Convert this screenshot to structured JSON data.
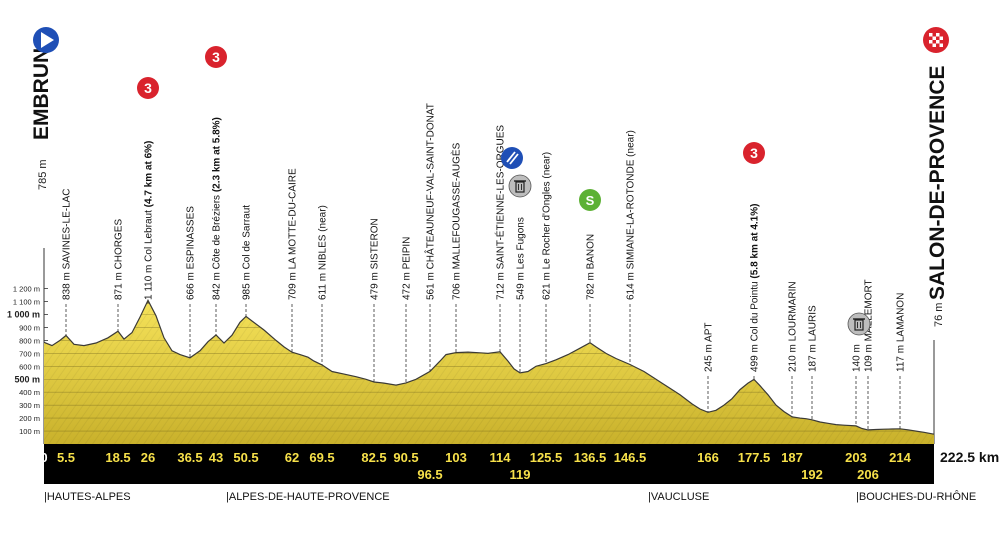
{
  "chart_data": {
    "type": "area",
    "title_start": "EMBRUN",
    "title_end": "SALON-DE-PROVENCE",
    "start_altitude_label": "785 m",
    "end_altitude_label": "76 m",
    "distance_total_label": "222.5 km",
    "x_unit": "km",
    "y_unit": "m",
    "xlim": [
      0,
      222.5
    ],
    "ylim": [
      0,
      1200
    ],
    "y_ticks": [
      {
        "value": 1200,
        "label": "1 200 m",
        "bold": false
      },
      {
        "value": 1100,
        "label": "1 100 m",
        "bold": false
      },
      {
        "value": 1000,
        "label": "1 000 m",
        "bold": true
      },
      {
        "value": 900,
        "label": "900 m",
        "bold": false
      },
      {
        "value": 800,
        "label": "800 m",
        "bold": false
      },
      {
        "value": 700,
        "label": "700 m",
        "bold": false
      },
      {
        "value": 600,
        "label": "600 m",
        "bold": false
      },
      {
        "value": 500,
        "label": "500 m",
        "bold": true
      },
      {
        "value": 400,
        "label": "400 m",
        "bold": false
      },
      {
        "value": 300,
        "label": "300 m",
        "bold": false
      },
      {
        "value": 200,
        "label": "200 m",
        "bold": false
      },
      {
        "value": 100,
        "label": "100 m",
        "bold": false
      }
    ],
    "km_ticks": [
      {
        "km": 0,
        "label": "0"
      },
      {
        "km": 5.5,
        "label": "5.5"
      },
      {
        "km": 18.5,
        "label": "18.5"
      },
      {
        "km": 26,
        "label": "26"
      },
      {
        "km": 36.5,
        "label": "36.5"
      },
      {
        "km": 43,
        "label": "43"
      },
      {
        "km": 50.5,
        "label": "50.5"
      },
      {
        "km": 62,
        "label": "62"
      },
      {
        "km": 69.5,
        "label": "69.5"
      },
      {
        "km": 82.5,
        "label": "82.5"
      },
      {
        "km": 90.5,
        "label": "90.5"
      },
      {
        "km": 96.5,
        "label": "96.5",
        "row": 2
      },
      {
        "km": 103,
        "label": "103"
      },
      {
        "km": 114,
        "label": "114"
      },
      {
        "km": 119,
        "label": "119",
        "row": 2
      },
      {
        "km": 125.5,
        "label": "125.5"
      },
      {
        "km": 136.5,
        "label": "136.5"
      },
      {
        "km": 146.5,
        "label": "146.5"
      },
      {
        "km": 166,
        "label": "166"
      },
      {
        "km": 177.5,
        "label": "177.5"
      },
      {
        "km": 187,
        "label": "187"
      },
      {
        "km": 192,
        "label": "192",
        "row": 2
      },
      {
        "km": 203,
        "label": "203"
      },
      {
        "km": 206,
        "label": "206",
        "row": 2
      },
      {
        "km": 214,
        "label": "214"
      }
    ],
    "profile": [
      [
        0,
        785
      ],
      [
        2,
        760
      ],
      [
        4,
        800
      ],
      [
        5.5,
        838
      ],
      [
        7.5,
        770
      ],
      [
        10,
        760
      ],
      [
        13,
        780
      ],
      [
        16,
        820
      ],
      [
        18.5,
        871
      ],
      [
        20,
        810
      ],
      [
        22,
        860
      ],
      [
        24,
        980
      ],
      [
        26,
        1110
      ],
      [
        28,
        990
      ],
      [
        30,
        820
      ],
      [
        32,
        720
      ],
      [
        34,
        690
      ],
      [
        36.5,
        666
      ],
      [
        39,
        720
      ],
      [
        41,
        790
      ],
      [
        43,
        842
      ],
      [
        45,
        780
      ],
      [
        47,
        840
      ],
      [
        49,
        940
      ],
      [
        50.5,
        985
      ],
      [
        52,
        950
      ],
      [
        55,
        880
      ],
      [
        58,
        800
      ],
      [
        60,
        750
      ],
      [
        62,
        709
      ],
      [
        64,
        690
      ],
      [
        66,
        670
      ],
      [
        67.5,
        640
      ],
      [
        69.5,
        611
      ],
      [
        72,
        560
      ],
      [
        75,
        540
      ],
      [
        78,
        520
      ],
      [
        80.5,
        500
      ],
      [
        82.5,
        479
      ],
      [
        85,
        470
      ],
      [
        88,
        455
      ],
      [
        90.5,
        472
      ],
      [
        93,
        500
      ],
      [
        96.5,
        561
      ],
      [
        99,
        640
      ],
      [
        100.5,
        690
      ],
      [
        103,
        706
      ],
      [
        106,
        710
      ],
      [
        108.5,
        705
      ],
      [
        111,
        700
      ],
      [
        114,
        712
      ],
      [
        116,
        640
      ],
      [
        117.5,
        580
      ],
      [
        119,
        549
      ],
      [
        121,
        560
      ],
      [
        123,
        600
      ],
      [
        125.5,
        621
      ],
      [
        128,
        650
      ],
      [
        131,
        690
      ],
      [
        134,
        740
      ],
      [
        136.5,
        782
      ],
      [
        138,
        750
      ],
      [
        140.5,
        700
      ],
      [
        143,
        660
      ],
      [
        146.5,
        614
      ],
      [
        150,
        560
      ],
      [
        153,
        500
      ],
      [
        156,
        440
      ],
      [
        159,
        380
      ],
      [
        162,
        310
      ],
      [
        164,
        270
      ],
      [
        166,
        245
      ],
      [
        168,
        260
      ],
      [
        170,
        300
      ],
      [
        172,
        350
      ],
      [
        174,
        420
      ],
      [
        176,
        470
      ],
      [
        177.5,
        499
      ],
      [
        179,
        450
      ],
      [
        181,
        380
      ],
      [
        183,
        300
      ],
      [
        185,
        250
      ],
      [
        187,
        210
      ],
      [
        189,
        200
      ],
      [
        190.5,
        195
      ],
      [
        192,
        187
      ],
      [
        194,
        170
      ],
      [
        196,
        160
      ],
      [
        198,
        150
      ],
      [
        200,
        145
      ],
      [
        203,
        140
      ],
      [
        204.5,
        120
      ],
      [
        206,
        109
      ],
      [
        208,
        112
      ],
      [
        210,
        114
      ],
      [
        212,
        116
      ],
      [
        214,
        117
      ],
      [
        216,
        110
      ],
      [
        218,
        100
      ],
      [
        220,
        90
      ],
      [
        222.5,
        76
      ]
    ],
    "waypoints": [
      {
        "km": 5.5,
        "alt": "838 m",
        "name": "SAVINES-LE-LAC",
        "note": ""
      },
      {
        "km": 18.5,
        "alt": "871 m",
        "name": "CHORGES",
        "note": ""
      },
      {
        "km": 26,
        "alt": "1 110 m",
        "name": "Col Lebraut",
        "note": "(4.7 km at 6%)"
      },
      {
        "km": 36.5,
        "alt": "666 m",
        "name": "ESPINASSES",
        "note": ""
      },
      {
        "km": 43,
        "alt": "842 m",
        "name": "Côte de Bréziers",
        "note": "(2.3 km at 5.8%)"
      },
      {
        "km": 50.5,
        "alt": "985 m",
        "name": "Col de Sarraut",
        "note": ""
      },
      {
        "km": 62,
        "alt": "709 m",
        "name": "LA MOTTE-DU-CAIRE",
        "note": ""
      },
      {
        "km": 69.5,
        "alt": "611 m",
        "name": "NIBLES",
        "note": "(near)"
      },
      {
        "km": 82.5,
        "alt": "479 m",
        "name": "SISTERON",
        "note": ""
      },
      {
        "km": 90.5,
        "alt": "472 m",
        "name": "PEIPIN",
        "note": ""
      },
      {
        "km": 96.5,
        "alt": "561 m",
        "name": "CHÂTEAUNEUF-VAL-SAINT-DONAT",
        "note": ""
      },
      {
        "km": 103,
        "alt": "706 m",
        "name": "MALLEFOUGASSE-AUGÈS",
        "note": ""
      },
      {
        "km": 114,
        "alt": "712 m",
        "name": "SAINT-ÉTIENNE-LES-ORGUES",
        "note": ""
      },
      {
        "km": 119,
        "alt": "549 m",
        "name": "Les Fugons",
        "note": ""
      },
      {
        "km": 125.5,
        "alt": "621 m",
        "name": "Le Rocher d'Ongles",
        "note": "(near)"
      },
      {
        "km": 136.5,
        "alt": "782 m",
        "name": "BANON",
        "note": ""
      },
      {
        "km": 146.5,
        "alt": "614 m",
        "name": "SIMIANE-LA-ROTONDE",
        "note": "(near)"
      },
      {
        "km": 166,
        "alt": "245 m",
        "name": "APT",
        "note": ""
      },
      {
        "km": 177.5,
        "alt": "499 m",
        "name": "Col du Pointu",
        "note": "(5.8 km at 4.1%)"
      },
      {
        "km": 187,
        "alt": "210 m",
        "name": "LOURMARIN",
        "note": ""
      },
      {
        "km": 192,
        "alt": "187 m",
        "name": "LAURIS",
        "note": ""
      },
      {
        "km": 203,
        "alt": "140 m",
        "name": "",
        "note": ""
      },
      {
        "km": 206,
        "alt": "109 m",
        "name": "MALLEMORT",
        "note": ""
      },
      {
        "km": 214,
        "alt": "117 m",
        "name": "LAMANON",
        "note": ""
      }
    ],
    "climbs": [
      {
        "km": 26,
        "category": "3"
      },
      {
        "km": 43,
        "category": "3"
      },
      {
        "km": 177.5,
        "category": "3"
      }
    ],
    "sprint": {
      "km": 136.5,
      "label": "S"
    },
    "feed_zone": {
      "km": 114
    },
    "trash_zones": [
      {
        "km": 119
      },
      {
        "km": 203
      }
    ],
    "regions": [
      {
        "km": 0,
        "label": "|HAUTES-ALPES"
      },
      {
        "km": 62,
        "label": "|ALPES-DE-HAUTE-PROVENCE"
      },
      {
        "km": 166,
        "label": "|VAUCLUSE"
      },
      {
        "km": 214,
        "label": "|BOUCHES-DU-RHÔNE"
      }
    ],
    "colors": {
      "fill_top": "#f6e35a",
      "fill_bottom": "#c9b12b",
      "outline": "#3b3a36",
      "band": "#000000",
      "km_text": "#f6e04a",
      "climb_badge": "#d9232d",
      "sprint_badge": "#5db135",
      "start_badge": "#1f4fb6",
      "feed_badge": "#1f4fb6",
      "finish_badge": "#d9232d",
      "trash_badge": "#bdbdbd"
    }
  }
}
